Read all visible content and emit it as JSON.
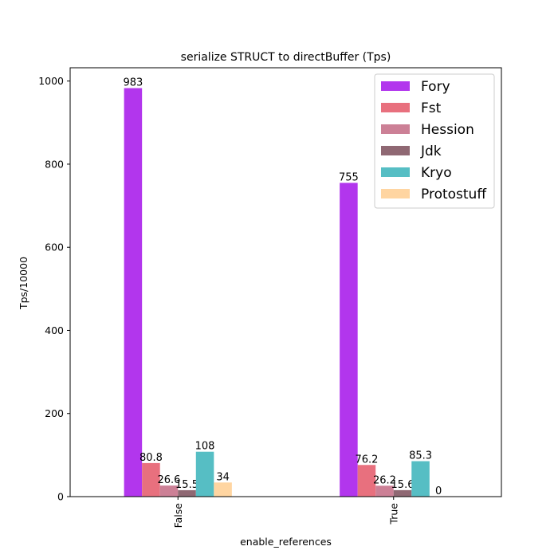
{
  "chart_data": {
    "type": "bar",
    "title": "serialize STRUCT to directBuffer (Tps)",
    "xlabel": "enable_references",
    "ylabel": "Tps/10000",
    "categories": [
      "False",
      "True"
    ],
    "ylim": [
      0,
      1032
    ],
    "yticks": [
      0,
      200,
      400,
      600,
      800,
      1000
    ],
    "grid": false,
    "legend_position": "top-right",
    "series": [
      {
        "name": "Fory",
        "color": "#b236ed",
        "values": [
          983,
          755
        ],
        "labels": [
          "983",
          "755"
        ]
      },
      {
        "name": "Fst",
        "color": "#e8707e",
        "values": [
          80.8,
          76.2
        ],
        "labels": [
          "80.8",
          "76.2"
        ]
      },
      {
        "name": "Hession",
        "color": "#cc8096",
        "values": [
          26.6,
          26.2
        ],
        "labels": [
          "26.6",
          "26.2"
        ]
      },
      {
        "name": "Jdk",
        "color": "#8f6873",
        "values": [
          15.5,
          15.6
        ],
        "labels": [
          "15.5",
          "15.6"
        ]
      },
      {
        "name": "Kryo",
        "color": "#56bec4",
        "values": [
          108,
          85.3
        ],
        "labels": [
          "108",
          "85.3"
        ]
      },
      {
        "name": "Protostuff",
        "color": "#ffd5a1",
        "values": [
          34,
          0
        ],
        "labels": [
          "34",
          "0"
        ]
      }
    ]
  }
}
